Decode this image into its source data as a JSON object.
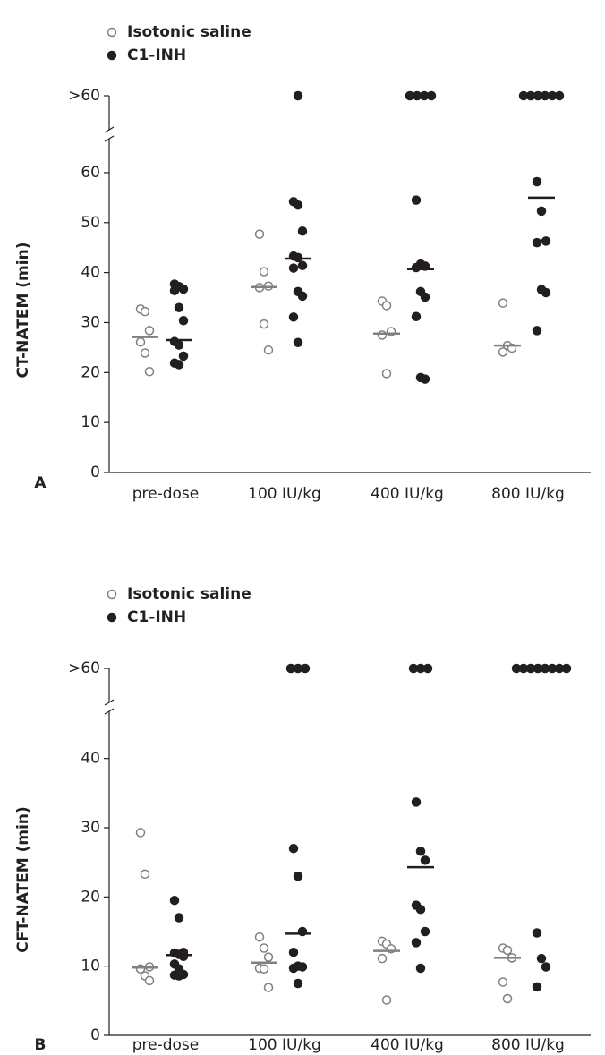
{
  "chart_data": [
    {
      "type": "strip",
      "panel_label": "A",
      "y_label": "CT-NATEM (min)",
      "categories": [
        "pre-dose",
        "100 IU/kg",
        "400 IU/kg",
        "800 IU/kg"
      ],
      "ylim": [
        0,
        65
      ],
      "yticks": [
        0,
        10,
        20,
        30,
        40,
        50,
        60
      ],
      "break_label": ">60",
      "series": [
        {
          "name": "Isotonic saline",
          "color": "#808080",
          "filled": false,
          "values": [
            [
              32.7,
              32.2,
              28.4,
              26.1,
              23.9,
              20.2
            ],
            [
              47.7,
              40.2,
              37.3,
              37.0,
              29.7,
              24.5
            ],
            [
              34.3,
              33.4,
              28.2,
              27.5,
              19.8
            ],
            [
              33.9,
              25.4,
              24.9,
              24.1
            ]
          ],
          "medians": [
            27.1,
            37.1,
            27.8,
            25.4
          ],
          "above_break": [
            0,
            0,
            0,
            0
          ]
        },
        {
          "name": "C1-INH",
          "color": "#231f20",
          "filled": true,
          "values": [
            [
              37.7,
              37.2,
              36.7,
              36.4,
              33.0,
              30.4,
              26.2,
              25.5,
              23.3,
              21.9,
              21.6
            ],
            [
              54.2,
              53.5,
              48.3,
              43.3,
              43.0,
              41.4,
              40.9,
              36.2,
              35.3,
              31.1,
              26.0
            ],
            [
              54.5,
              41.7,
              41.3,
              41.0,
              36.2,
              35.1,
              31.2,
              19.0,
              18.7
            ],
            [
              58.2,
              52.3,
              46.3,
              46.0,
              36.6,
              36.0,
              28.4
            ]
          ],
          "medians": [
            26.5,
            42.8,
            40.7,
            55.0
          ],
          "above_break": [
            0,
            1,
            4,
            6
          ]
        }
      ]
    },
    {
      "type": "strip",
      "panel_label": "B",
      "y_label": "CFT-NATEM (min)",
      "categories": [
        "pre-dose",
        "100 IU/kg",
        "400 IU/kg",
        "800 IU/kg"
      ],
      "ylim": [
        0,
        45
      ],
      "yticks": [
        0,
        10,
        20,
        30,
        40
      ],
      "break_label": ">60",
      "series": [
        {
          "name": "Isotonic saline",
          "color": "#808080",
          "filled": false,
          "values": [
            [
              29.3,
              23.3,
              9.9,
              9.6,
              8.6,
              7.9
            ],
            [
              14.2,
              12.6,
              11.3,
              9.7,
              9.6,
              6.9
            ],
            [
              13.6,
              13.2,
              12.5,
              11.1,
              5.1
            ],
            [
              12.6,
              12.3,
              11.2,
              7.7,
              5.3
            ]
          ],
          "medians": [
            9.8,
            10.5,
            12.2,
            11.2
          ],
          "above_break": [
            0,
            0,
            0,
            0
          ]
        },
        {
          "name": "C1-INH",
          "color": "#231f20",
          "filled": true,
          "values": [
            [
              19.5,
              17.0,
              12.0,
              11.9,
              11.7,
              11.4,
              10.3,
              9.6,
              8.8,
              8.7,
              8.6
            ],
            [
              27.0,
              23.0,
              15.0,
              12.0,
              10.0,
              9.9,
              9.7,
              7.5
            ],
            [
              33.7,
              26.6,
              25.3,
              18.8,
              18.2,
              15.0,
              13.4,
              9.7
            ],
            [
              14.8,
              11.1,
              9.9,
              7.0
            ]
          ],
          "medians": [
            11.6,
            14.7,
            24.3,
            null
          ],
          "above_break": [
            0,
            3,
            3,
            8
          ]
        }
      ]
    }
  ]
}
